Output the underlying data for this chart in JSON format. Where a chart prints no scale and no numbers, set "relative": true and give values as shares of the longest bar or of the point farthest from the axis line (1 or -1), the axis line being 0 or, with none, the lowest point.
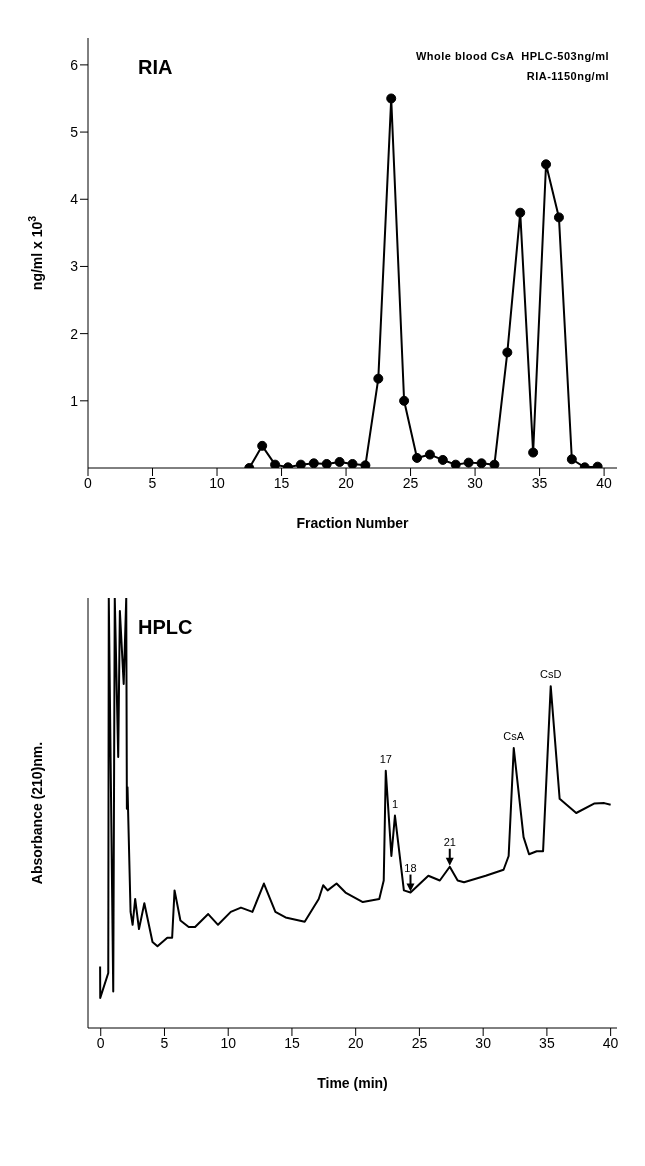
{
  "chart_data": [
    {
      "type": "line",
      "xlabel": "Fraction Number",
      "ylabel": "ng/ml x 10$^{3}$",
      "marker": "circle",
      "annotations": [
        "RIA",
        "Whole blood CsA  HPLC-503ng/ml",
        "RIA-1150ng/ml"
      ],
      "xlim": [
        0,
        41
      ],
      "xticks": [
        0,
        5,
        10,
        15,
        20,
        25,
        30,
        35,
        40
      ],
      "ylim": [
        0,
        6.4
      ],
      "yticks": [
        1,
        2,
        3,
        4,
        5,
        6
      ],
      "series": [
        {
          "color": "#000000",
          "x": [
            12.5,
            13.5,
            14.5,
            15.5,
            16.5,
            17.5,
            18.5,
            19.5,
            20.5,
            21.5,
            22.5,
            23.5,
            24.5,
            25.5,
            26.5,
            27.5,
            28.5,
            29.5,
            30.5,
            31.5,
            32.5,
            33.5,
            34.5,
            35.5,
            36.5,
            37.5,
            38.5,
            39.5
          ],
          "values": [
            0,
            0.33,
            0.05,
            0.01,
            0.05,
            0.07,
            0.06,
            0.09,
            0.06,
            0.04,
            1.33,
            5.5,
            1.0,
            0.15,
            0.2,
            0.12,
            0.05,
            0.08,
            0.07,
            0.05,
            1.72,
            3.8,
            0.23,
            4.52,
            3.73,
            0.13,
            0.01,
            0.02
          ]
        }
      ]
    },
    {
      "type": "line",
      "xlabel": "Time (min)",
      "ylabel": "Absorbance (210)nm.",
      "marker": "none",
      "relative": true,
      "annotations": [
        "HPLC",
        {
          "text": "17",
          "x": 22.36,
          "y": 0.598
        },
        {
          "text": "1",
          "x": 23.08,
          "y": 0.494
        },
        {
          "text": "18",
          "x": 24.3,
          "y": 0.315
        },
        {
          "text": "21",
          "x": 27.38,
          "y": 0.375
        },
        {
          "text": "CsA",
          "x": 32.4,
          "y": 0.651
        },
        {
          "text": "CsD",
          "x": 35.3,
          "y": 0.795
        }
      ],
      "xlim": [
        -1,
        40.5
      ],
      "xticks": [
        0,
        5,
        10,
        15,
        20,
        25,
        30,
        35,
        40
      ],
      "series": [
        {
          "color": "#000000",
          "x": [
            -0.05,
            -0.04,
            0.59,
            0.63,
            0.98,
            1.1,
            1.37,
            1.5,
            1.8,
            2.0,
            2.05,
            2.1,
            2.34,
            2.5,
            2.7,
            3.0,
            3.42,
            4.06,
            4.45,
            5.22,
            5.6,
            5.79,
            6.25,
            6.9,
            7.4,
            8.43,
            9.2,
            10.2,
            11.0,
            11.9,
            12.8,
            13.7,
            14.5,
            16.0,
            17.1,
            17.45,
            17.8,
            18.5,
            19.2,
            20.56,
            21.85,
            22.2,
            22.36,
            22.8,
            23.08,
            23.78,
            24.3,
            25.7,
            26.6,
            27.38,
            28.0,
            28.5,
            30.2,
            31.6,
            32.0,
            32.4,
            33.17,
            33.6,
            34.2,
            34.7,
            35.3,
            36.0,
            37.3,
            38.7,
            39.5,
            40.0
          ],
          "values": [
            0.143,
            0.07,
            0.128,
            1,
            0.085,
            1,
            0.63,
            0.97,
            0.8,
            1,
            0.51,
            0.56,
            0.27,
            0.24,
            0.3,
            0.23,
            0.29,
            0.2,
            0.19,
            0.21,
            0.21,
            0.32,
            0.25,
            0.235,
            0.235,
            0.265,
            0.24,
            0.27,
            0.28,
            0.27,
            0.336,
            0.27,
            0.257,
            0.247,
            0.3,
            0.332,
            0.32,
            0.336,
            0.315,
            0.293,
            0.3,
            0.343,
            0.598,
            0.4,
            0.494,
            0.32,
            0.315,
            0.354,
            0.343,
            0.375,
            0.343,
            0.339,
            0.354,
            0.368,
            0.4,
            0.651,
            0.444,
            0.404,
            0.411,
            0.411,
            0.795,
            0.533,
            0.5,
            0.522,
            0.523,
            0.519
          ]
        }
      ]
    }
  ]
}
